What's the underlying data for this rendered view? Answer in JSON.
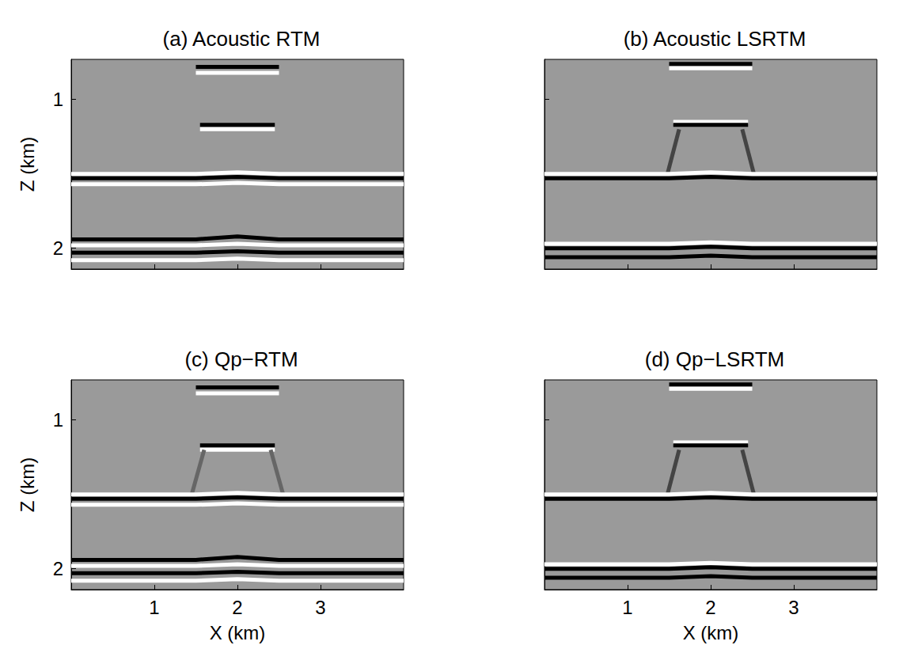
{
  "chart_data": [
    {
      "type": "line",
      "title": "(a) Acoustic RTM",
      "ylabel": "Z (km)",
      "tick_labels": "y",
      "xlim": [
        0,
        4
      ],
      "xticks": [
        1,
        2,
        3
      ],
      "ylim": [
        0.73,
        2.14
      ],
      "yticks": [
        1,
        2
      ],
      "series": [
        {
          "color": "#000000",
          "x": [
            1.5,
            2.5
          ],
          "values": [
            0.78,
            0.78
          ]
        },
        {
          "color": "#ffffff",
          "x": [
            1.5,
            2.5
          ],
          "values": [
            0.82,
            0.82
          ]
        },
        {
          "color": "#000000",
          "x": [
            1.55,
            2.45
          ],
          "values": [
            1.17,
            1.17
          ]
        },
        {
          "color": "#ffffff",
          "x": [
            1.55,
            2.45
          ],
          "values": [
            1.2,
            1.2
          ]
        },
        {
          "color": "#ffffff",
          "x": [
            0,
            1.5,
            2,
            2.5,
            4
          ],
          "values": [
            1.5,
            1.5,
            1.49,
            1.5,
            1.5
          ]
        },
        {
          "color": "#000000",
          "x": [
            0,
            1.5,
            2,
            2.5,
            4
          ],
          "values": [
            1.53,
            1.53,
            1.52,
            1.53,
            1.53
          ]
        },
        {
          "color": "#ffffff",
          "x": [
            0,
            1.5,
            2,
            2.5,
            4
          ],
          "values": [
            1.57,
            1.57,
            1.56,
            1.57,
            1.57
          ]
        },
        {
          "color": "#000000",
          "x": [
            0,
            1.5,
            2,
            2.5,
            4
          ],
          "values": [
            1.94,
            1.94,
            1.92,
            1.94,
            1.94
          ]
        },
        {
          "color": "#ffffff",
          "x": [
            0,
            1.5,
            2,
            2.5,
            4
          ],
          "values": [
            1.98,
            1.98,
            1.97,
            1.98,
            1.98
          ]
        },
        {
          "color": "#000000",
          "x": [
            0,
            1.5,
            2,
            2.5,
            4
          ],
          "values": [
            2.03,
            2.03,
            2.02,
            2.03,
            2.03
          ]
        },
        {
          "color": "#ffffff",
          "x": [
            0,
            1.5,
            2,
            2.5,
            4
          ],
          "values": [
            2.08,
            2.08,
            2.07,
            2.08,
            2.08
          ]
        }
      ]
    },
    {
      "type": "line",
      "title": "(b) Acoustic LSRTM",
      "tick_labels": false,
      "xlim": [
        0,
        4
      ],
      "xticks": [
        1,
        2,
        3
      ],
      "ylim": [
        0.73,
        2.14
      ],
      "yticks": [
        1,
        2
      ],
      "series": [
        {
          "color": "#000000",
          "x": [
            1.5,
            2.5
          ],
          "values": [
            0.76,
            0.76
          ]
        },
        {
          "color": "#ffffff",
          "x": [
            1.5,
            2.5
          ],
          "values": [
            0.79,
            0.79
          ]
        },
        {
          "color": "#ffffff",
          "x": [
            1.55,
            2.45
          ],
          "values": [
            1.15,
            1.15
          ]
        },
        {
          "color": "#000000",
          "x": [
            1.55,
            2.45
          ],
          "values": [
            1.17,
            1.17
          ]
        },
        {
          "color": "#444444",
          "x": [
            1.62,
            1.48
          ],
          "values": [
            1.2,
            1.5
          ]
        },
        {
          "color": "#444444",
          "x": [
            2.38,
            2.52
          ],
          "values": [
            1.2,
            1.5
          ]
        },
        {
          "color": "#ffffff",
          "x": [
            0,
            1.5,
            2,
            2.5,
            4
          ],
          "values": [
            1.5,
            1.5,
            1.49,
            1.5,
            1.5
          ]
        },
        {
          "color": "#000000",
          "x": [
            0,
            1.5,
            2,
            2.5,
            4
          ],
          "values": [
            1.53,
            1.53,
            1.52,
            1.53,
            1.53
          ]
        },
        {
          "color": "#ffffff",
          "x": [
            0,
            1.5,
            2,
            2.5,
            4
          ],
          "values": [
            1.97,
            1.97,
            1.96,
            1.97,
            1.97
          ]
        },
        {
          "color": "#000000",
          "x": [
            0,
            1.5,
            2,
            2.5,
            4
          ],
          "values": [
            2.0,
            2.0,
            1.99,
            2.0,
            2.0
          ]
        },
        {
          "color": "#000000",
          "x": [
            0,
            1.5,
            2,
            2.5,
            4
          ],
          "values": [
            2.06,
            2.06,
            2.05,
            2.06,
            2.06
          ]
        }
      ]
    },
    {
      "type": "line",
      "title": "(c) Qp−RTM",
      "xlabel": "X (km)",
      "ylabel": "Z (km)",
      "tick_labels": true,
      "xlim": [
        0,
        4
      ],
      "xticks": [
        1,
        2,
        3
      ],
      "ylim": [
        0.73,
        2.14
      ],
      "yticks": [
        1,
        2
      ],
      "series": [
        {
          "color": "#000000",
          "x": [
            1.5,
            2.5
          ],
          "values": [
            0.78,
            0.78
          ]
        },
        {
          "color": "#ffffff",
          "x": [
            1.5,
            2.5
          ],
          "values": [
            0.82,
            0.82
          ]
        },
        {
          "color": "#000000",
          "x": [
            1.55,
            2.45
          ],
          "values": [
            1.17,
            1.17
          ]
        },
        {
          "color": "#ffffff",
          "x": [
            1.55,
            2.45
          ],
          "values": [
            1.2,
            1.2
          ]
        },
        {
          "color": "#666666",
          "x": [
            1.6,
            1.45
          ],
          "values": [
            1.2,
            1.5
          ]
        },
        {
          "color": "#666666",
          "x": [
            2.4,
            2.55
          ],
          "values": [
            1.2,
            1.5
          ]
        },
        {
          "color": "#ffffff",
          "x": [
            0,
            1.5,
            2,
            2.5,
            4
          ],
          "values": [
            1.5,
            1.5,
            1.49,
            1.5,
            1.5
          ]
        },
        {
          "color": "#000000",
          "x": [
            0,
            1.5,
            2,
            2.5,
            4
          ],
          "values": [
            1.53,
            1.53,
            1.52,
            1.53,
            1.53
          ]
        },
        {
          "color": "#ffffff",
          "x": [
            0,
            1.5,
            2,
            2.5,
            4
          ],
          "values": [
            1.57,
            1.57,
            1.56,
            1.57,
            1.57
          ]
        },
        {
          "color": "#000000",
          "x": [
            0,
            1.5,
            2,
            2.5,
            4
          ],
          "values": [
            1.94,
            1.94,
            1.92,
            1.94,
            1.94
          ]
        },
        {
          "color": "#ffffff",
          "x": [
            0,
            1.5,
            2,
            2.5,
            4
          ],
          "values": [
            1.98,
            1.98,
            1.97,
            1.98,
            1.98
          ]
        },
        {
          "color": "#000000",
          "x": [
            0,
            1.5,
            2,
            2.5,
            4
          ],
          "values": [
            2.03,
            2.03,
            2.02,
            2.03,
            2.03
          ]
        },
        {
          "color": "#ffffff",
          "x": [
            0,
            1.5,
            2,
            2.5,
            4
          ],
          "values": [
            2.08,
            2.08,
            2.07,
            2.08,
            2.08
          ]
        }
      ]
    },
    {
      "type": "line",
      "title": "(d) Qp−LSRTM",
      "xlabel": "X (km)",
      "tick_labels": "x",
      "xlim": [
        0,
        4
      ],
      "xticks": [
        1,
        2,
        3
      ],
      "ylim": [
        0.73,
        2.14
      ],
      "yticks": [
        1,
        2
      ],
      "series": [
        {
          "color": "#000000",
          "x": [
            1.5,
            2.5
          ],
          "values": [
            0.76,
            0.76
          ]
        },
        {
          "color": "#ffffff",
          "x": [
            1.5,
            2.5
          ],
          "values": [
            0.79,
            0.79
          ]
        },
        {
          "color": "#ffffff",
          "x": [
            1.55,
            2.45
          ],
          "values": [
            1.15,
            1.15
          ]
        },
        {
          "color": "#000000",
          "x": [
            1.55,
            2.45
          ],
          "values": [
            1.17,
            1.17
          ]
        },
        {
          "color": "#444444",
          "x": [
            1.62,
            1.48
          ],
          "values": [
            1.2,
            1.5
          ]
        },
        {
          "color": "#444444",
          "x": [
            2.38,
            2.52
          ],
          "values": [
            1.2,
            1.5
          ]
        },
        {
          "color": "#ffffff",
          "x": [
            0,
            1.5,
            2,
            2.5,
            4
          ],
          "values": [
            1.5,
            1.5,
            1.49,
            1.5,
            1.5
          ]
        },
        {
          "color": "#000000",
          "x": [
            0,
            1.5,
            2,
            2.5,
            4
          ],
          "values": [
            1.53,
            1.53,
            1.52,
            1.53,
            1.53
          ]
        },
        {
          "color": "#ffffff",
          "x": [
            0,
            1.5,
            2,
            2.5,
            4
          ],
          "values": [
            1.97,
            1.97,
            1.96,
            1.97,
            1.97
          ]
        },
        {
          "color": "#000000",
          "x": [
            0,
            1.5,
            2,
            2.5,
            4
          ],
          "values": [
            2.0,
            2.0,
            1.99,
            2.0,
            2.0
          ]
        },
        {
          "color": "#000000",
          "x": [
            0,
            1.5,
            2,
            2.5,
            4
          ],
          "values": [
            2.06,
            2.06,
            2.05,
            2.06,
            2.06
          ]
        }
      ]
    }
  ]
}
